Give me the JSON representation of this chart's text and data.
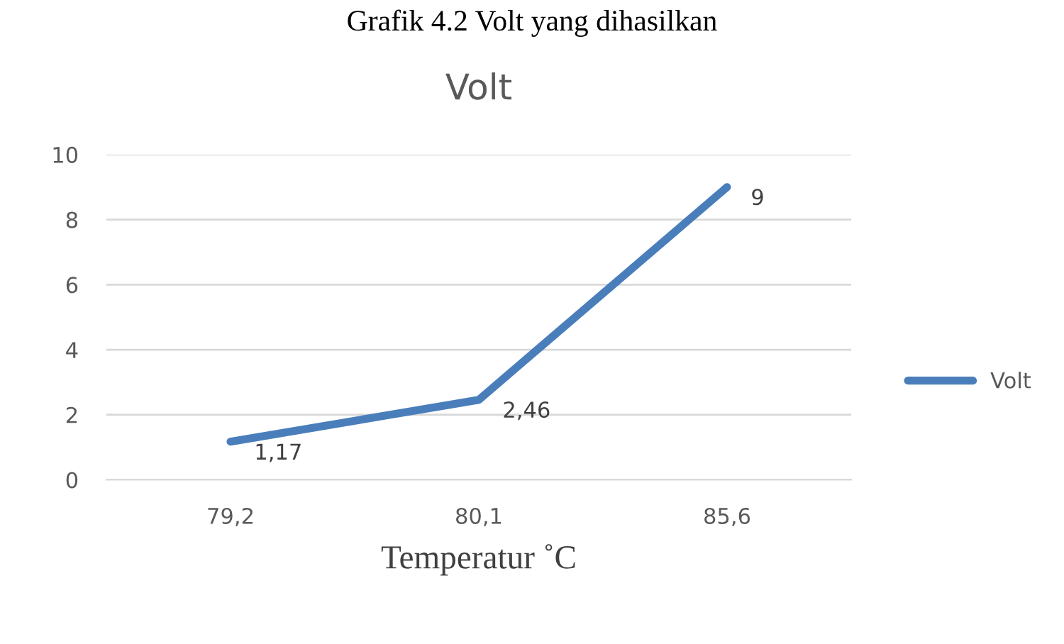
{
  "chart_data": {
    "type": "line",
    "title": "Volt",
    "xlabel": "Temperatur ˚C",
    "annotations": [
      "Grafik 4.2 Volt yang dihasilkan"
    ],
    "categories": [
      "79,2",
      "80,1",
      "85,6"
    ],
    "series": [
      {
        "name": "Volt",
        "color": "#4a7ebb",
        "values": [
          1.17,
          2.46,
          9
        ],
        "value_labels": [
          "1,17",
          "2,46",
          "9"
        ]
      }
    ],
    "ylim": [
      0,
      10
    ],
    "yticks": [
      0,
      2,
      4,
      6,
      8,
      10
    ],
    "grid": "y",
    "legend": "right",
    "marker": "none",
    "line_style": "solid"
  }
}
